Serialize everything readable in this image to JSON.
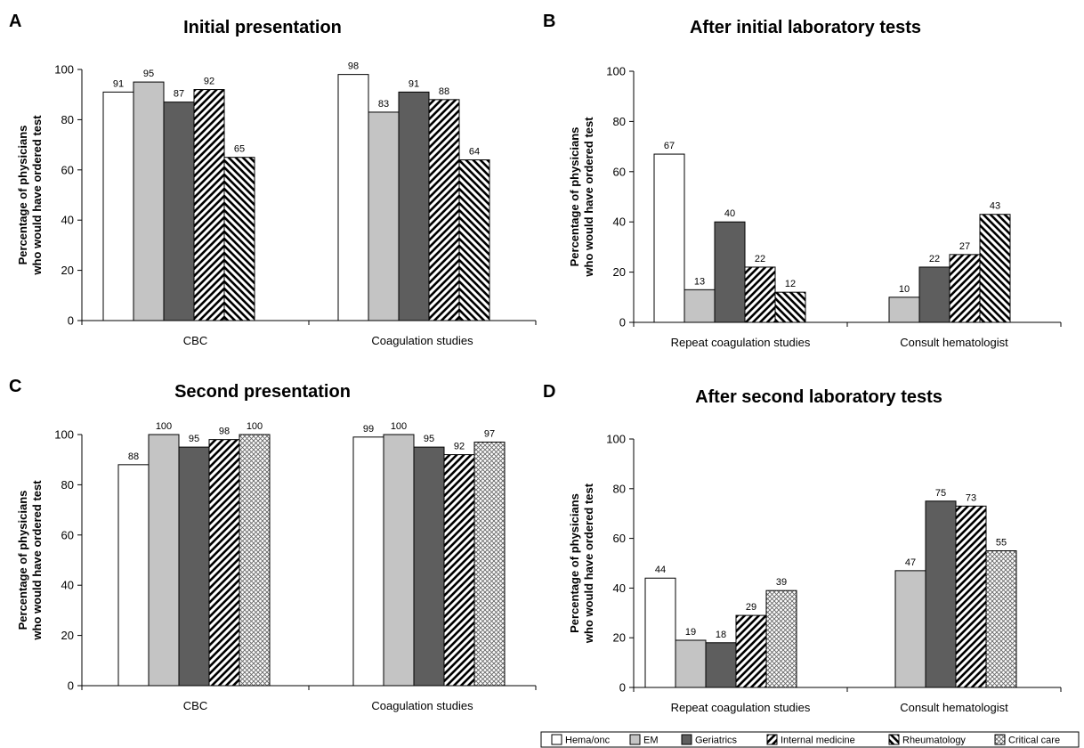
{
  "chart_data": [
    {
      "type": "bar",
      "panel": "A",
      "title": "Initial presentation",
      "ylabel": "Percentage of physicians\nwho would have ordered test",
      "ylim": [
        0,
        100
      ],
      "yticks": [
        0,
        20,
        40,
        60,
        80,
        100
      ],
      "categories": [
        "CBC",
        "Coagulation studies"
      ],
      "series": [
        {
          "name": "Hema/onc",
          "values": [
            91,
            98
          ]
        },
        {
          "name": "EM",
          "values": [
            95,
            83
          ]
        },
        {
          "name": "Geriatrics",
          "values": [
            87,
            91
          ]
        },
        {
          "name": "Internal medicine",
          "values": [
            92,
            88
          ]
        },
        {
          "name": "Rheumatology",
          "values": [
            65,
            64
          ]
        }
      ]
    },
    {
      "type": "bar",
      "panel": "B",
      "title": "After initial laboratory tests",
      "ylabel": "Percentage of physicians\nwho would have ordered test",
      "ylim": [
        0,
        100
      ],
      "yticks": [
        0,
        20,
        40,
        60,
        80,
        100
      ],
      "categories": [
        "Repeat coagulation studies",
        "Consult hematologist"
      ],
      "series": [
        {
          "name": "Hema/onc",
          "values": [
            67,
            null
          ]
        },
        {
          "name": "EM",
          "values": [
            13,
            10
          ]
        },
        {
          "name": "Geriatrics",
          "values": [
            40,
            22
          ]
        },
        {
          "name": "Internal medicine",
          "values": [
            22,
            27
          ]
        },
        {
          "name": "Rheumatology",
          "values": [
            12,
            43
          ]
        }
      ]
    },
    {
      "type": "bar",
      "panel": "C",
      "title": "Second presentation",
      "ylabel": "Percentage of physicians\nwho would have ordered test",
      "ylim": [
        0,
        100
      ],
      "yticks": [
        0,
        20,
        40,
        60,
        80,
        100
      ],
      "categories": [
        "CBC",
        "Coagulation studies"
      ],
      "series": [
        {
          "name": "Hema/onc",
          "values": [
            88,
            99
          ]
        },
        {
          "name": "EM",
          "values": [
            100,
            100
          ]
        },
        {
          "name": "Geriatrics",
          "values": [
            95,
            95
          ]
        },
        {
          "name": "Internal medicine",
          "values": [
            98,
            92
          ]
        },
        {
          "name": "Critical care",
          "values": [
            100,
            97
          ]
        }
      ]
    },
    {
      "type": "bar",
      "panel": "D",
      "title": "After second laboratory tests",
      "ylabel": "Percentage of physicians\nwho would have ordered test",
      "ylim": [
        0,
        100
      ],
      "yticks": [
        0,
        20,
        40,
        60,
        80,
        100
      ],
      "categories": [
        "Repeat coagulation studies",
        "Consult hematologist"
      ],
      "series": [
        {
          "name": "Hema/onc",
          "values": [
            44,
            null
          ]
        },
        {
          "name": "EM",
          "values": [
            19,
            47
          ]
        },
        {
          "name": "Geriatrics",
          "values": [
            18,
            75
          ]
        },
        {
          "name": "Internal medicine",
          "values": [
            29,
            73
          ]
        },
        {
          "name": "Critical care",
          "values": [
            39,
            55
          ]
        }
      ]
    }
  ],
  "legend": {
    "placement": "bottom-right",
    "items": [
      {
        "name": "Hema/onc",
        "pattern": "white"
      },
      {
        "name": "EM",
        "pattern": "light-gray"
      },
      {
        "name": "Geriatrics",
        "pattern": "dark-gray"
      },
      {
        "name": "Internal medicine",
        "pattern": "diagonal-forward"
      },
      {
        "name": "Rheumatology",
        "pattern": "diagonal-back"
      },
      {
        "name": "Critical care",
        "pattern": "crosshatch"
      }
    ]
  },
  "colors": {
    "EM": "#c4c4c4",
    "Geriatrics": "#5e5e5e",
    "stroke": "#000000"
  }
}
